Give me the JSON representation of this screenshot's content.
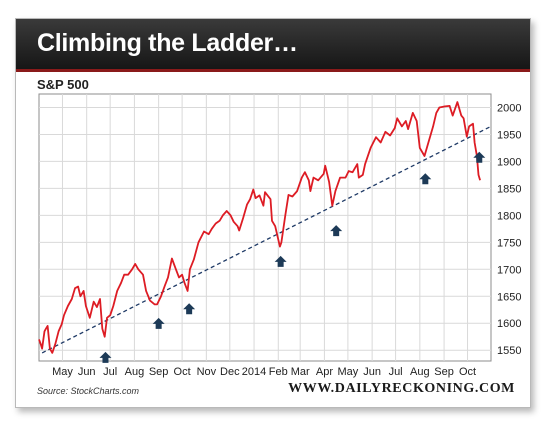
{
  "header": {
    "title": "Climbing the Ladder…"
  },
  "footer": {
    "source": "Source: StockCharts.com",
    "site": "WWW.DAILYRECKONING.COM"
  },
  "colors": {
    "series": "#dd1c24",
    "trendline": "#1f3a66",
    "arrows": "#1d3a57",
    "titlebar": "#222222"
  },
  "chart_data": {
    "type": "line",
    "title": "S&P 500",
    "xlabel": "",
    "ylabel": "",
    "ylim": [
      1530,
      2025
    ],
    "yticks": [
      1550,
      1600,
      1650,
      1700,
      1750,
      1800,
      1850,
      1900,
      1950,
      2000
    ],
    "xlim": [
      "2013-04-01",
      "2014-10-31"
    ],
    "xticks": [
      {
        "label": "May",
        "date": "2013-05-01"
      },
      {
        "label": "Jun",
        "date": "2013-06-01"
      },
      {
        "label": "Jul",
        "date": "2013-07-01"
      },
      {
        "label": "Aug",
        "date": "2013-08-01"
      },
      {
        "label": "Sep",
        "date": "2013-09-01"
      },
      {
        "label": "Oct",
        "date": "2013-10-01"
      },
      {
        "label": "Nov",
        "date": "2013-11-01"
      },
      {
        "label": "Dec",
        "date": "2013-12-01"
      },
      {
        "label": "2014",
        "date": "2014-01-01"
      },
      {
        "label": "Feb",
        "date": "2014-02-01"
      },
      {
        "label": "Mar",
        "date": "2014-03-01"
      },
      {
        "label": "Apr",
        "date": "2014-04-01"
      },
      {
        "label": "May",
        "date": "2014-05-01"
      },
      {
        "label": "Jun",
        "date": "2014-06-01"
      },
      {
        "label": "Jul",
        "date": "2014-07-01"
      },
      {
        "label": "Aug",
        "date": "2014-08-01"
      },
      {
        "label": "Sep",
        "date": "2014-09-01"
      },
      {
        "label": "Oct",
        "date": "2014-10-01"
      }
    ],
    "grid": true,
    "series": [
      {
        "x": [
          "2013-04-01",
          "2013-04-03",
          "2013-04-05",
          "2013-04-08",
          "2013-04-10",
          "2013-04-12",
          "2013-04-15",
          "2013-04-18",
          "2013-04-22",
          "2013-04-26",
          "2013-04-30",
          "2013-05-03",
          "2013-05-08",
          "2013-05-13",
          "2013-05-17",
          "2013-05-21",
          "2013-05-24",
          "2013-05-28",
          "2013-05-31",
          "2013-06-05",
          "2013-06-10",
          "2013-06-14",
          "2013-06-18",
          "2013-06-21",
          "2013-06-24",
          "2013-06-27",
          "2013-07-01",
          "2013-07-05",
          "2013-07-10",
          "2013-07-15",
          "2013-07-19",
          "2013-07-24",
          "2013-07-29",
          "2013-08-02",
          "2013-08-06",
          "2013-08-12",
          "2013-08-16",
          "2013-08-21",
          "2013-08-27",
          "2013-08-30",
          "2013-09-04",
          "2013-09-09",
          "2013-09-13",
          "2013-09-18",
          "2013-09-23",
          "2013-09-27",
          "2013-10-01",
          "2013-10-04",
          "2013-10-08",
          "2013-10-11",
          "2013-10-16",
          "2013-10-22",
          "2013-10-29",
          "2013-11-04",
          "2013-11-08",
          "2013-11-13",
          "2013-11-18",
          "2013-11-22",
          "2013-11-27",
          "2013-12-02",
          "2013-12-06",
          "2013-12-11",
          "2013-12-13",
          "2013-12-18",
          "2013-12-23",
          "2013-12-27",
          "2013-12-31",
          "2014-01-03",
          "2014-01-08",
          "2014-01-13",
          "2014-01-15",
          "2014-01-22",
          "2014-01-24",
          "2014-01-28",
          "2014-02-03",
          "2014-02-05",
          "2014-02-10",
          "2014-02-14",
          "2014-02-19",
          "2014-02-25",
          "2014-03-03",
          "2014-03-07",
          "2014-03-12",
          "2014-03-14",
          "2014-03-18",
          "2014-03-24",
          "2014-03-31",
          "2014-04-02",
          "2014-04-07",
          "2014-04-11",
          "2014-04-15",
          "2014-04-21",
          "2014-04-28",
          "2014-05-02",
          "2014-05-07",
          "2014-05-13",
          "2014-05-15",
          "2014-05-20",
          "2014-05-23",
          "2014-05-30",
          "2014-06-06",
          "2014-06-12",
          "2014-06-18",
          "2014-06-24",
          "2014-06-30",
          "2014-07-03",
          "2014-07-09",
          "2014-07-14",
          "2014-07-17",
          "2014-07-23",
          "2014-07-28",
          "2014-08-01",
          "2014-08-07",
          "2014-08-12",
          "2014-08-18",
          "2014-08-22",
          "2014-08-26",
          "2014-09-02",
          "2014-09-08",
          "2014-09-12",
          "2014-09-18",
          "2014-09-23",
          "2014-09-26",
          "2014-09-30",
          "2014-10-03",
          "2014-10-08",
          "2014-10-10",
          "2014-10-13",
          "2014-10-15",
          "2014-10-17"
        ],
        "y": [
          1570,
          1562,
          1553,
          1585,
          1590,
          1595,
          1553,
          1545,
          1562,
          1585,
          1598,
          1615,
          1632,
          1645,
          1665,
          1668,
          1650,
          1660,
          1632,
          1610,
          1640,
          1630,
          1645,
          1590,
          1575,
          1610,
          1615,
          1632,
          1660,
          1675,
          1690,
          1690,
          1700,
          1710,
          1700,
          1690,
          1660,
          1642,
          1635,
          1635,
          1650,
          1670,
          1685,
          1720,
          1700,
          1685,
          1690,
          1675,
          1660,
          1700,
          1718,
          1750,
          1770,
          1765,
          1775,
          1785,
          1790,
          1800,
          1808,
          1800,
          1788,
          1780,
          1772,
          1795,
          1820,
          1830,
          1848,
          1832,
          1837,
          1818,
          1843,
          1830,
          1790,
          1780,
          1742,
          1750,
          1800,
          1838,
          1835,
          1845,
          1870,
          1880,
          1865,
          1845,
          1870,
          1865,
          1877,
          1892,
          1862,
          1818,
          1845,
          1870,
          1870,
          1882,
          1880,
          1895,
          1870,
          1875,
          1895,
          1925,
          1945,
          1935,
          1955,
          1948,
          1962,
          1980,
          1965,
          1975,
          1960,
          1990,
          1975,
          1925,
          1910,
          1935,
          1965,
          1990,
          2000,
          2002,
          2003,
          1985,
          2010,
          1985,
          1980,
          1946,
          1965,
          1970,
          1935,
          1910,
          1875,
          1865
        ]
      }
    ],
    "trendline": {
      "from": {
        "x": "2013-04-05",
        "y": 1545
      },
      "to": {
        "x": "2014-10-31",
        "y": 1965
      }
    },
    "annotations": [
      {
        "x": "2013-06-25",
        "y": 1547,
        "marker": "up-arrow"
      },
      {
        "x": "2013-09-01",
        "y": 1610,
        "marker": "up-arrow"
      },
      {
        "x": "2013-10-10",
        "y": 1637,
        "marker": "up-arrow"
      },
      {
        "x": "2014-02-04",
        "y": 1725,
        "marker": "up-arrow"
      },
      {
        "x": "2014-04-16",
        "y": 1782,
        "marker": "up-arrow"
      },
      {
        "x": "2014-08-08",
        "y": 1878,
        "marker": "up-arrow"
      },
      {
        "x": "2014-10-16",
        "y": 1918,
        "marker": "up-arrow"
      }
    ]
  }
}
